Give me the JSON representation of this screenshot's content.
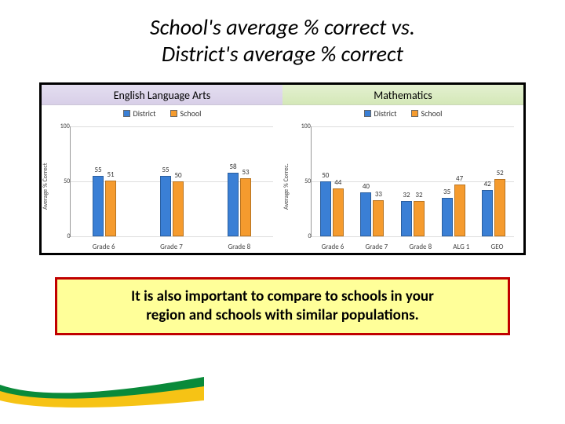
{
  "title_line1": "School's average % correct vs.",
  "title_line2": "District's average % correct",
  "legend": {
    "district": "District",
    "school": "School"
  },
  "colors": {
    "district_bar": "#3a7fd5",
    "school_bar": "#f59b2e",
    "callout_border": "#c00000",
    "callout_bg": "#ffff99",
    "ela_header_top": "#e4def0",
    "math_header_top": "#e4f0d0",
    "swoosh_white": "#ffffff",
    "swoosh_yellow": "#f6c315",
    "swoosh_green": "#0a8a3a"
  },
  "ela": {
    "title": "English Language Arts",
    "ylabel": "Average % Correct",
    "ylim_max": 100,
    "yticks": [
      0,
      50,
      100
    ],
    "categories": [
      "Grade 6",
      "Grade 7",
      "Grade 8"
    ],
    "district": [
      55,
      55,
      58
    ],
    "school": [
      51,
      50,
      53
    ]
  },
  "math": {
    "title": "Mathematics",
    "ylabel": "Average % Correc.",
    "ylim_max": 100,
    "yticks": [
      0,
      50,
      100
    ],
    "categories": [
      "Grade 6",
      "Grade 7",
      "Grade 8",
      "ALG 1",
      "GEO"
    ],
    "district": [
      50,
      40,
      32,
      35,
      42
    ],
    "school": [
      44,
      33,
      32,
      47,
      52
    ]
  },
  "callout_line1": "It is also important to compare to schools in your",
  "callout_line2": "region and schools with similar populations."
}
